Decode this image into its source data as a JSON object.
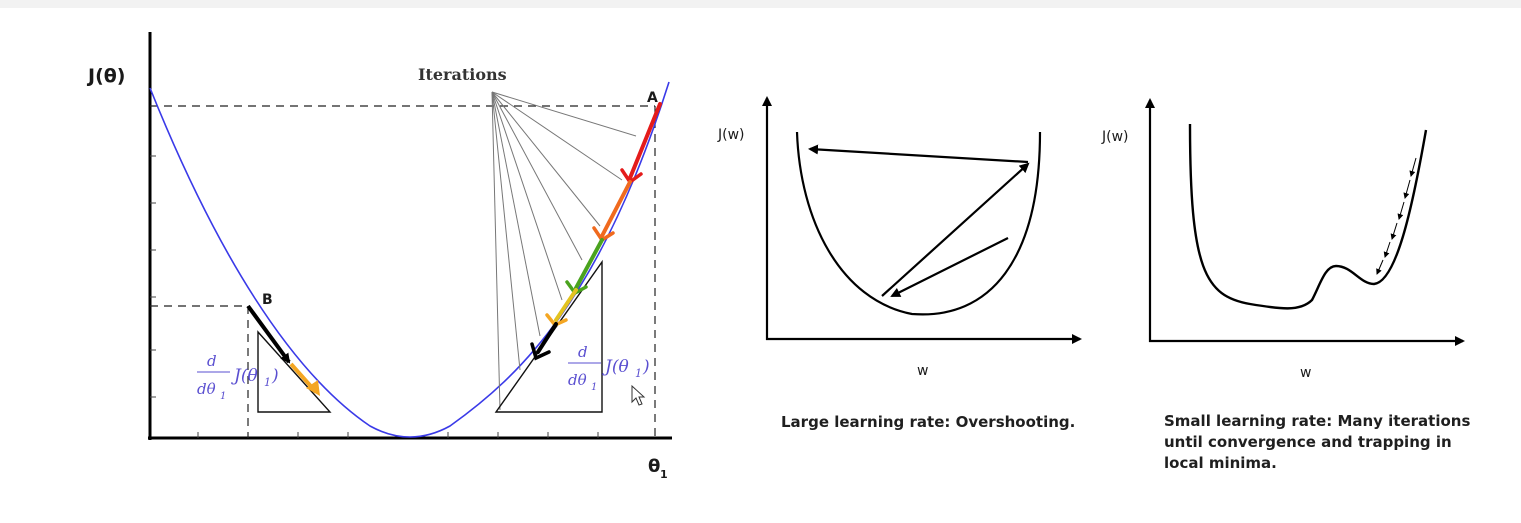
{
  "left_diagram": {
    "y_axis_label": "J(θ)",
    "x_axis_label": "θ",
    "x_axis_subscript": "1",
    "iterations_label": "Iterations",
    "point_a": "A",
    "point_b": "B",
    "derivative_numerator": "d",
    "derivative_denominator": "dθ",
    "derivative_denominator_sub": "1",
    "derivative_function": "J(θ",
    "derivative_function_sub": "1",
    "derivative_function_close": ")",
    "arrow_colors": [
      "#e41b1b",
      "#f06a1e",
      "#f4a623",
      "#4aa31e",
      "#e3c320",
      "#000000"
    ],
    "curve_color": "#3a3ae8",
    "label_color": "#5a4fd0"
  },
  "middle_diagram": {
    "y_axis_label": "J(w)",
    "x_axis_label": "w",
    "caption": "Large learning rate: Overshooting."
  },
  "right_diagram": {
    "y_axis_label": "J(w)",
    "x_axis_label": "w",
    "caption": "Small learning rate: Many iterations until convergence and trapping in local minima."
  }
}
